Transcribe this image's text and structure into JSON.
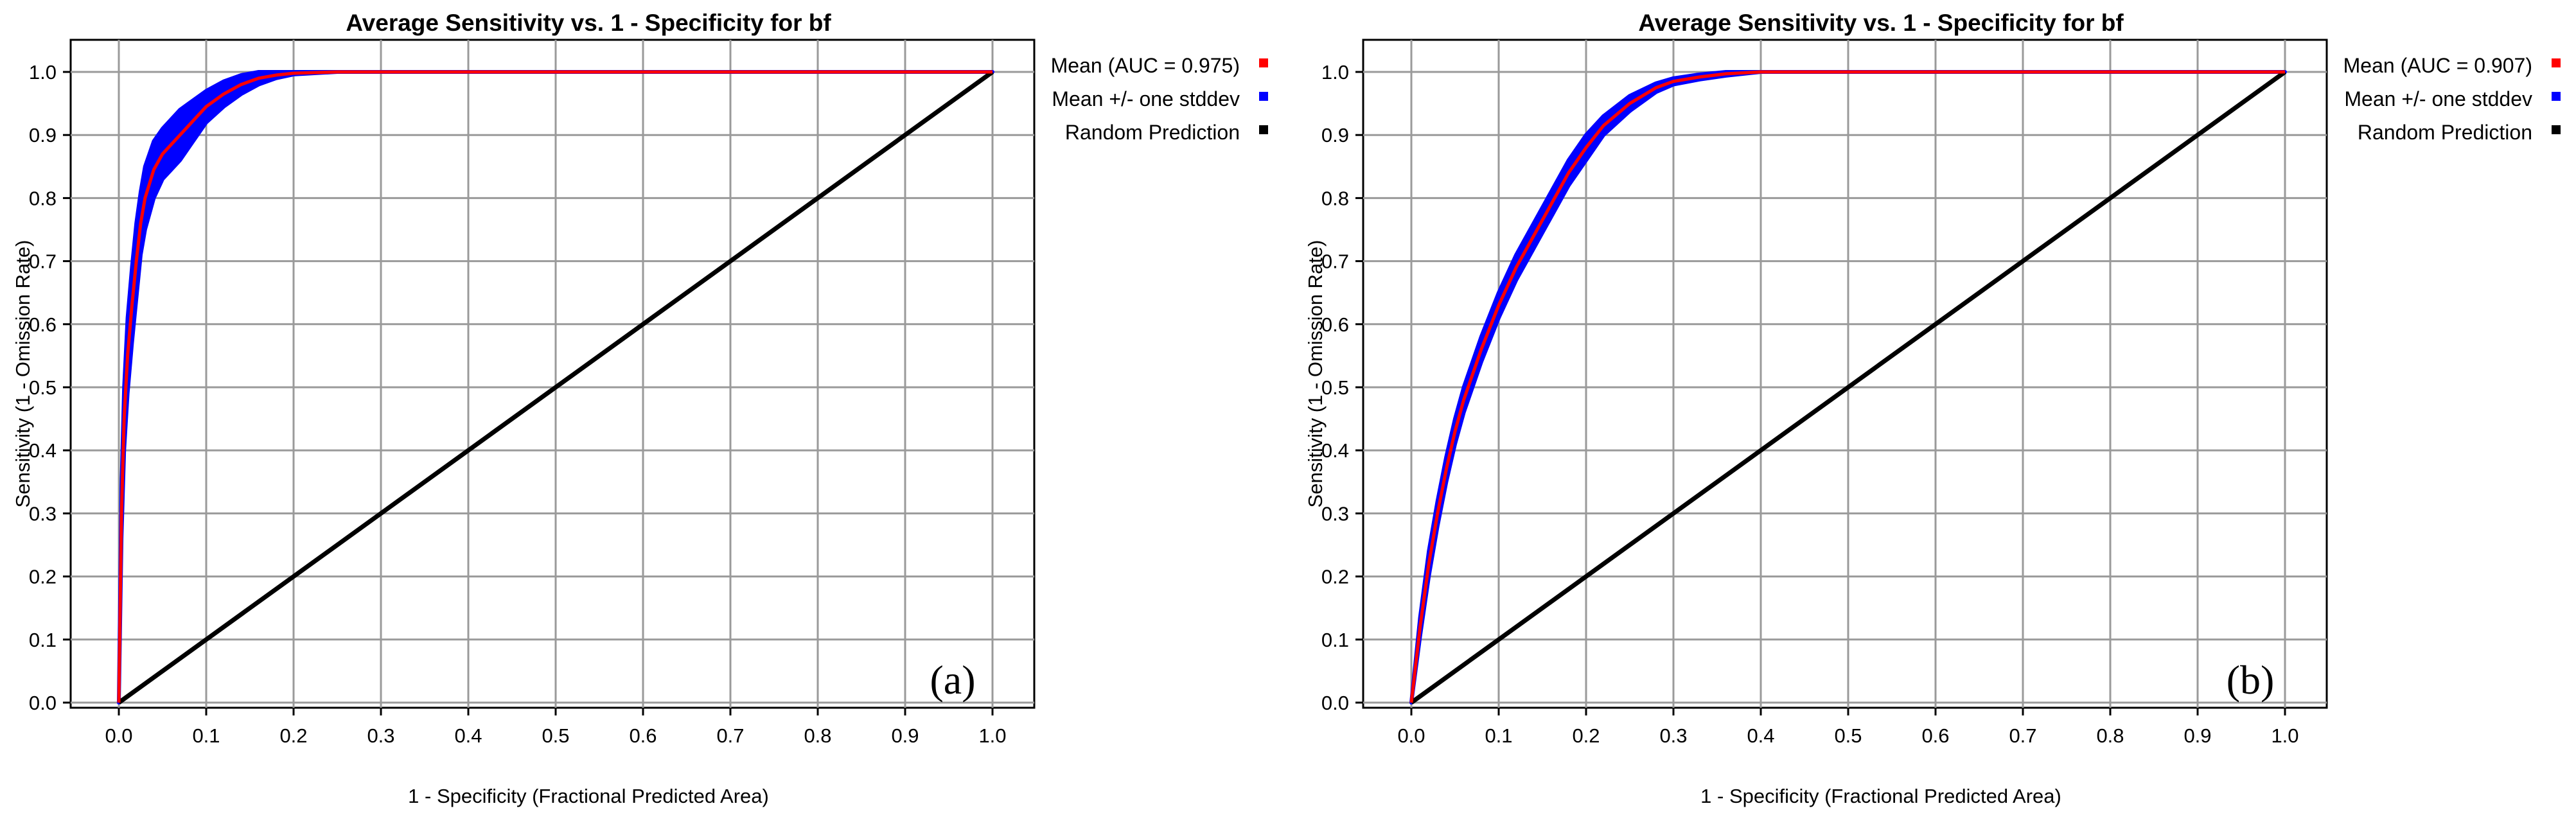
{
  "chart_data": [
    {
      "type": "line",
      "panel_label": "(a)",
      "title": "Average Sensitivity vs. 1 - Specificity for bf",
      "xlabel": "1 - Specificity (Fractional Predicted Area)",
      "ylabel": "Sensitivity (1 - Omission Rate)",
      "xlim": [
        0,
        1
      ],
      "ylim": [
        0,
        1
      ],
      "grid": true,
      "legend_position": "right-top",
      "x_ticks": [
        "0.0",
        "0.1",
        "0.2",
        "0.3",
        "0.4",
        "0.5",
        "0.6",
        "0.7",
        "0.8",
        "0.9",
        "1.0"
      ],
      "y_ticks": [
        "0.0",
        "0.1",
        "0.2",
        "0.3",
        "0.4",
        "0.5",
        "0.6",
        "0.7",
        "0.8",
        "0.9",
        "1.0"
      ],
      "series": [
        {
          "name": "Mean (AUC = 0.975)",
          "color": "#ff0000",
          "x": [
            0,
            0.003,
            0.006,
            0.01,
            0.015,
            0.02,
            0.025,
            0.03,
            0.04,
            0.05,
            0.06,
            0.07,
            0.08,
            0.09,
            0.1,
            0.12,
            0.14,
            0.16,
            0.18,
            0.2,
            0.25,
            0.3,
            0.5,
            0.7,
            1.0
          ],
          "y": [
            0,
            0.3,
            0.45,
            0.55,
            0.63,
            0.7,
            0.76,
            0.8,
            0.845,
            0.87,
            0.885,
            0.9,
            0.915,
            0.93,
            0.945,
            0.965,
            0.98,
            0.99,
            0.995,
            0.998,
            1.0,
            1.0,
            1.0,
            1.0,
            1.0
          ]
        },
        {
          "name": "Mean +/- one stddev",
          "color": "#0000ff",
          "x": [
            0,
            0.003,
            0.006,
            0.01,
            0.015,
            0.02,
            0.025,
            0.03,
            0.04,
            0.05,
            0.06,
            0.07,
            0.08,
            0.09,
            0.1,
            0.12,
            0.14,
            0.16,
            0.18,
            0.2,
            0.25,
            0.3,
            0.5,
            0.7,
            1.0
          ],
          "upper": [
            0,
            0.34,
            0.5,
            0.61,
            0.69,
            0.76,
            0.81,
            0.85,
            0.89,
            0.91,
            0.925,
            0.94,
            0.95,
            0.96,
            0.97,
            0.985,
            0.995,
            1.0,
            1.0,
            1.0,
            1.0,
            1.0,
            1.0,
            1.0,
            1.0
          ],
          "lower": [
            0,
            0.26,
            0.4,
            0.49,
            0.57,
            0.64,
            0.71,
            0.75,
            0.8,
            0.83,
            0.845,
            0.86,
            0.88,
            0.9,
            0.92,
            0.945,
            0.965,
            0.98,
            0.99,
            0.996,
            1.0,
            1.0,
            1.0,
            1.0,
            1.0
          ]
        },
        {
          "name": "Random Prediction",
          "color": "#000000",
          "x": [
            0,
            1
          ],
          "y": [
            0,
            1
          ]
        }
      ]
    },
    {
      "type": "line",
      "panel_label": "(b)",
      "title": "Average Sensitivity vs. 1 - Specificity for bf",
      "xlabel": "1 - Specificity (Fractional Predicted Area)",
      "ylabel": "Sensitivity (1 - Omission Rate)",
      "xlim": [
        0,
        1
      ],
      "ylim": [
        0,
        1
      ],
      "grid": true,
      "legend_position": "right-top",
      "x_ticks": [
        "0.0",
        "0.1",
        "0.2",
        "0.3",
        "0.4",
        "0.5",
        "0.6",
        "0.7",
        "0.8",
        "0.9",
        "1.0"
      ],
      "y_ticks": [
        "0.0",
        "0.1",
        "0.2",
        "0.3",
        "0.4",
        "0.5",
        "0.6",
        "0.7",
        "0.8",
        "0.9",
        "1.0"
      ],
      "series": [
        {
          "name": "Mean (AUC = 0.907)",
          "color": "#ff0000",
          "x": [
            0,
            0.01,
            0.02,
            0.03,
            0.04,
            0.05,
            0.06,
            0.08,
            0.1,
            0.12,
            0.14,
            0.16,
            0.18,
            0.2,
            0.22,
            0.25,
            0.28,
            0.3,
            0.33,
            0.36,
            0.4,
            0.5,
            0.7,
            1.0
          ],
          "y": [
            0,
            0.12,
            0.22,
            0.3,
            0.37,
            0.43,
            0.48,
            0.56,
            0.63,
            0.69,
            0.74,
            0.79,
            0.84,
            0.88,
            0.915,
            0.95,
            0.975,
            0.985,
            0.992,
            0.997,
            1.0,
            1.0,
            1.0,
            1.0
          ]
        },
        {
          "name": "Mean +/- one stddev",
          "color": "#0000ff",
          "x": [
            0,
            0.01,
            0.02,
            0.03,
            0.04,
            0.05,
            0.06,
            0.08,
            0.1,
            0.12,
            0.14,
            0.16,
            0.18,
            0.2,
            0.22,
            0.25,
            0.28,
            0.3,
            0.33,
            0.36,
            0.4,
            0.5,
            0.7,
            1.0
          ],
          "upper": [
            0,
            0.135,
            0.24,
            0.32,
            0.39,
            0.45,
            0.5,
            0.58,
            0.65,
            0.71,
            0.76,
            0.81,
            0.86,
            0.9,
            0.93,
            0.962,
            0.982,
            0.99,
            0.996,
            1.0,
            1.0,
            1.0,
            1.0,
            1.0
          ],
          "lower": [
            0,
            0.105,
            0.2,
            0.28,
            0.35,
            0.41,
            0.46,
            0.54,
            0.61,
            0.67,
            0.72,
            0.77,
            0.82,
            0.86,
            0.9,
            0.938,
            0.968,
            0.98,
            0.988,
            0.994,
            1.0,
            1.0,
            1.0,
            1.0
          ]
        },
        {
          "name": "Random Prediction",
          "color": "#000000",
          "x": [
            0,
            1
          ],
          "y": [
            0,
            1
          ]
        }
      ]
    }
  ]
}
